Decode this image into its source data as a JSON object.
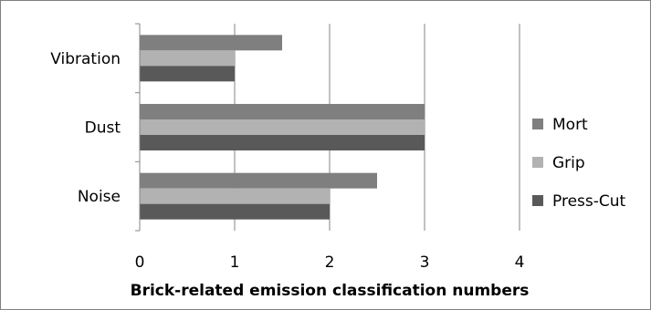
{
  "chart_data": {
    "type": "bar",
    "orientation": "horizontal",
    "categories": [
      "Vibration",
      "Dust",
      "Noise"
    ],
    "series": [
      {
        "name": "Mort",
        "values": [
          1.5,
          3,
          2.5
        ],
        "color": "#7f7f7f"
      },
      {
        "name": "Grip",
        "values": [
          1,
          3,
          2
        ],
        "color": "#b2b2b2"
      },
      {
        "name": "Press-Cut",
        "values": [
          1,
          3,
          2
        ],
        "color": "#595959"
      }
    ],
    "title": "",
    "xlabel": "Brick-related emission classification numbers",
    "ylabel": "",
    "xlim": [
      0,
      4
    ],
    "x_ticks": [
      "0",
      "1",
      "2",
      "3",
      "4"
    ],
    "grid": "vertical",
    "legend_position": "right"
  }
}
